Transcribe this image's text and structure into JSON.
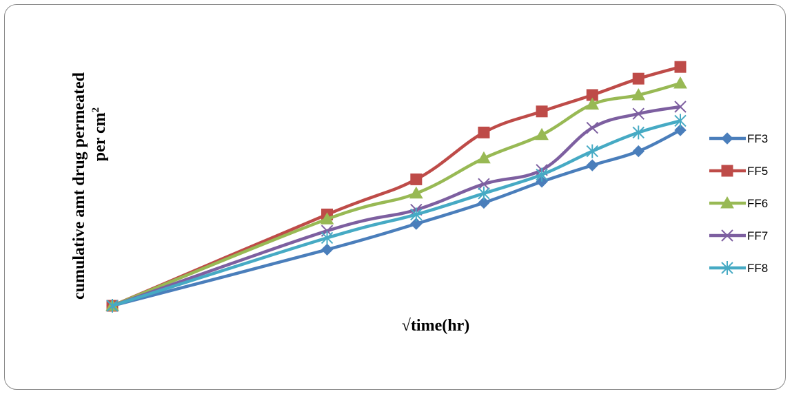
{
  "chart_data": {
    "type": "line",
    "title": "",
    "xlabel": "√time(hr)",
    "ylabel_line1": "cumulative amt drug permeated",
    "ylabel_line2_text": "per cm",
    "ylabel_line2_sup": "2",
    "x": [
      0,
      2,
      2.83,
      3.46,
      4,
      4.47,
      4.9,
      5.29
    ],
    "y_range": [
      0,
      1
    ],
    "series": [
      {
        "name": "FF3",
        "marker": "diamond",
        "color": "#4a7ebb",
        "values": [
          0,
          0.24,
          0.35,
          0.44,
          0.53,
          0.6,
          0.66,
          0.75
        ]
      },
      {
        "name": "FF5",
        "marker": "square",
        "color": "#be4b48",
        "values": [
          0,
          0.39,
          0.54,
          0.74,
          0.83,
          0.9,
          0.97,
          1.02
        ]
      },
      {
        "name": "FF6",
        "marker": "triangle",
        "color": "#98b954",
        "values": [
          0,
          0.37,
          0.48,
          0.63,
          0.73,
          0.86,
          0.9,
          0.95
        ]
      },
      {
        "name": "FF7",
        "marker": "x",
        "color": "#7d5fa0",
        "values": [
          0,
          0.32,
          0.41,
          0.52,
          0.58,
          0.76,
          0.82,
          0.85
        ]
      },
      {
        "name": "FF8",
        "marker": "star",
        "color": "#46aac4",
        "values": [
          0,
          0.29,
          0.39,
          0.48,
          0.56,
          0.66,
          0.74,
          0.79
        ]
      }
    ],
    "grid": false,
    "legend": "right"
  }
}
